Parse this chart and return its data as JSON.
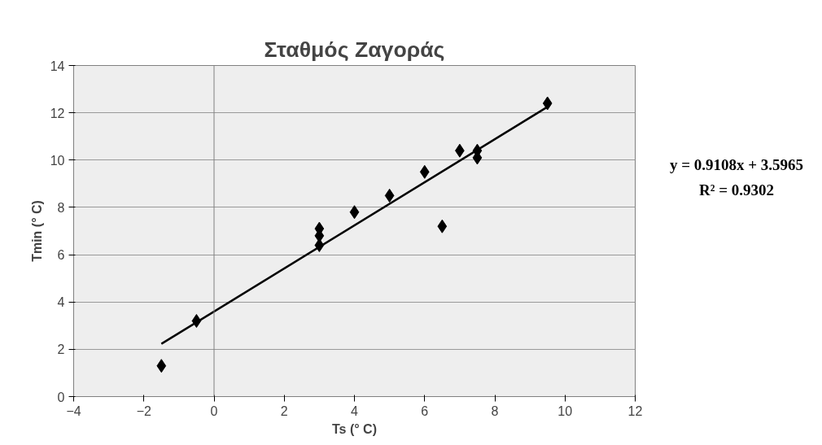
{
  "chart_data": {
    "type": "scatter",
    "title": "Σταθμός Ζαγοράς",
    "xlabel": "Ts (° C)",
    "ylabel": "Tmin (° C)",
    "series": [
      {
        "color": "#000000",
        "x": [
          -1.5,
          -0.5,
          3,
          3,
          3,
          4,
          5,
          6,
          6.5,
          7,
          7.5,
          7.5,
          9.5
        ],
        "values": [
          1.3,
          3.2,
          6.4,
          6.8,
          7.1,
          7.8,
          8.5,
          9.5,
          7.2,
          10.4,
          10.1,
          10.4,
          12.4
        ],
        "marker": "diamond"
      },
      {
        "type": "line",
        "color": "#000000",
        "x": [
          -1.5,
          9.5
        ],
        "values": [
          2.23,
          12.25
        ],
        "marker": "none",
        "line_style": "solid"
      }
    ],
    "xlim": [
      -4,
      12
    ],
    "xticks": [
      -4,
      -2,
      0,
      2,
      4,
      6,
      8,
      10,
      12
    ],
    "ylim": [
      0,
      14
    ],
    "yticks": [
      0,
      2,
      4,
      6,
      8,
      10,
      12,
      14
    ],
    "grid": "y",
    "ref_lines": [
      {
        "axis": "x",
        "value": 0,
        "color": "#808080"
      }
    ],
    "annotations": [
      "y = 0.9108x + 3.5965",
      "R² = 0.9302"
    ]
  }
}
